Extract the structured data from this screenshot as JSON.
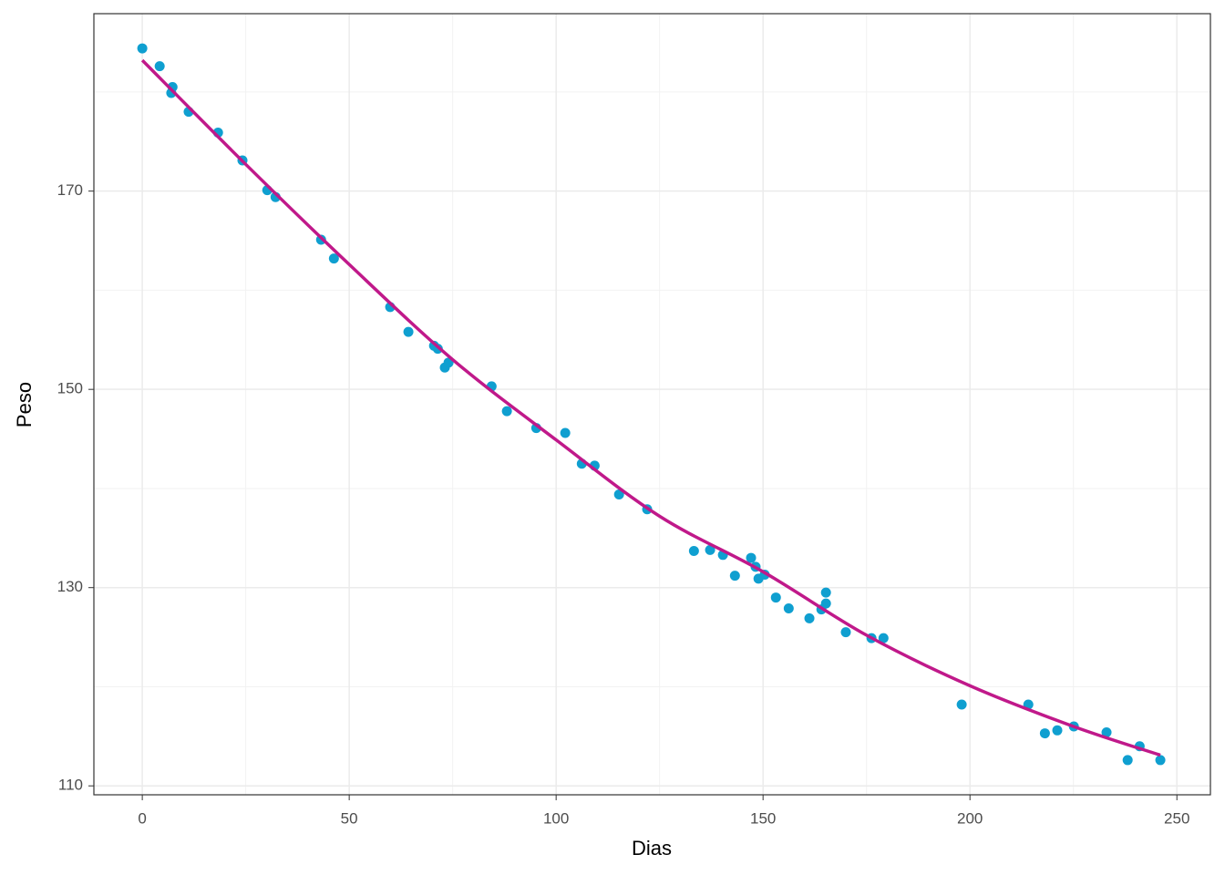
{
  "chart_data": {
    "type": "scatter",
    "x_label": "Dias",
    "y_label": "Peso",
    "xlim": [
      -11.7,
      258.1
    ],
    "ylim": [
      109.1,
      187.9
    ],
    "xticks": [
      0,
      50,
      100,
      150,
      200,
      250
    ],
    "yticks": [
      110,
      130,
      150,
      170
    ],
    "xminorticks": [
      25,
      75,
      125,
      175,
      225
    ],
    "yminorticks": [
      120,
      140,
      160,
      180
    ],
    "grid": true,
    "points": {
      "color": "#0f9fd0",
      "x": [
        0,
        4.2,
        7.3,
        7,
        11.2,
        18.3,
        24.2,
        30.2,
        32.2,
        43.2,
        46.3,
        59.9,
        64.3,
        70.5,
        71.4,
        73.1,
        74,
        84.4,
        88.1,
        95.2,
        102.2,
        106.2,
        109.3,
        115.2,
        122,
        133.3,
        137.2,
        140.3,
        143.2,
        147.1,
        148.2,
        148.9,
        150.4,
        153.1,
        156.2,
        161.2,
        164.1,
        165.2,
        165.2,
        170,
        176.2,
        179.1,
        198,
        214.1,
        218.1,
        221.1,
        225.1,
        233,
        238.1,
        241,
        246
      ],
      "y": [
        184.4,
        182.6,
        180.5,
        179.9,
        178.0,
        175.9,
        173.1,
        170.1,
        169.4,
        165.1,
        163.2,
        158.3,
        155.8,
        154.4,
        154.1,
        152.2,
        152.7,
        150.3,
        147.8,
        146.1,
        145.6,
        142.5,
        142.3,
        139.4,
        137.9,
        133.7,
        133.8,
        133.3,
        131.2,
        133.0,
        132.1,
        130.9,
        131.3,
        129.0,
        127.9,
        126.9,
        127.8,
        128.4,
        129.5,
        125.5,
        124.9,
        124.9,
        118.2,
        118.2,
        115.3,
        115.6,
        116.0,
        115.4,
        112.6,
        114.0,
        112.6
      ]
    },
    "fit": {
      "color": "#c0198a",
      "x": [
        0,
        25,
        50,
        75,
        100,
        125,
        150,
        175,
        200,
        225,
        246
      ],
      "y": [
        183.2,
        172.7,
        162.6,
        153.0,
        144.9,
        137.2,
        131.6,
        125.2,
        120.1,
        116.0,
        113.1
      ]
    }
  }
}
